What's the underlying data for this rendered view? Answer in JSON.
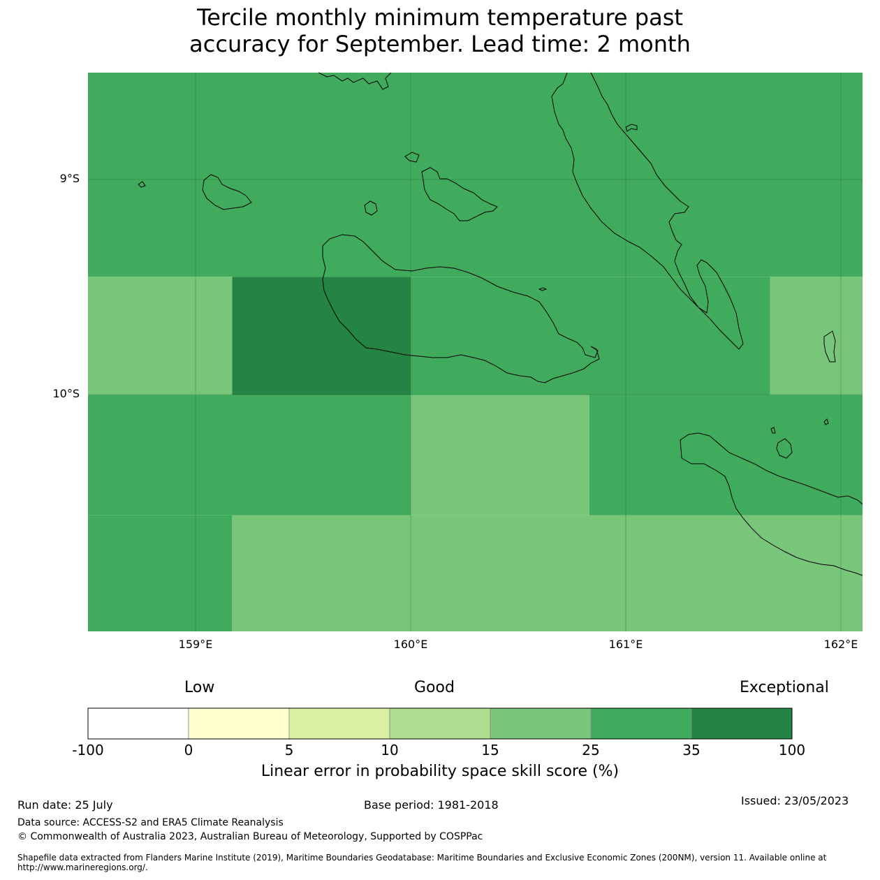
{
  "title_line1": "Tercile monthly minimum temperature past",
  "title_line2": "accuracy for September. Lead time: 2 month",
  "lat_ticks": [
    "9°S",
    "10°S"
  ],
  "lon_ticks": [
    "159°E",
    "160°E",
    "161°E",
    "162°E"
  ],
  "map_extent": {
    "lon_min": 158.5,
    "lon_max": 162.1,
    "lat_top": -8.5,
    "lat_bottom": -11.1
  },
  "cells": [
    {
      "lon0": 158.5,
      "lon1": 162.1,
      "lat0": -8.5,
      "lat1": -9.45,
      "category": "25-35"
    },
    {
      "lon0": 158.5,
      "lon1": 159.17,
      "lat0": -9.45,
      "lat1": -10.0,
      "category": "15-25"
    },
    {
      "lon0": 159.17,
      "lon1": 160.0,
      "lat0": -9.45,
      "lat1": -10.0,
      "category": "35-100"
    },
    {
      "lon0": 160.0,
      "lon1": 161.67,
      "lat0": -9.45,
      "lat1": -10.0,
      "category": "25-35"
    },
    {
      "lon0": 161.67,
      "lon1": 162.1,
      "lat0": -9.45,
      "lat1": -10.0,
      "category": "15-25"
    },
    {
      "lon0": 158.5,
      "lon1": 160.0,
      "lat0": -10.0,
      "lat1": -10.56,
      "category": "25-35"
    },
    {
      "lon0": 160.0,
      "lon1": 160.83,
      "lat0": -10.0,
      "lat1": -10.56,
      "category": "15-25"
    },
    {
      "lon0": 160.83,
      "lon1": 162.1,
      "lat0": -10.0,
      "lat1": -10.56,
      "category": "25-35"
    },
    {
      "lon0": 158.5,
      "lon1": 159.17,
      "lat0": -10.56,
      "lat1": -11.1,
      "category": "25-35"
    },
    {
      "lon0": 159.17,
      "lon1": 162.1,
      "lat0": -10.56,
      "lat1": -11.1,
      "category": "15-25"
    }
  ],
  "colorbar": {
    "headings": [
      "Low",
      "Good",
      "Exceptional"
    ],
    "bounds": [
      "-100",
      "0",
      "5",
      "10",
      "15",
      "25",
      "35",
      "100"
    ],
    "colors": [
      "#ffffff",
      "#ffffcc",
      "#d9f0a3",
      "#addd8e",
      "#78c679",
      "#41ab5d",
      "#238443"
    ],
    "title": "Linear error in probability space skill score (%)"
  },
  "footer": {
    "run_date": "Run date: 25 July",
    "base_period": "Base period: 1981-2018",
    "issued": "Issued: 23/05/2023",
    "data_source": "Data source: ACCESS-S2 and ERA5 Climate Reanalysis",
    "copyright": "© Commonwealth of Australia 2023, Australian Bureau of Meteorology, Supported by COSPPac",
    "shapefile_line1": "Shapefile data extracted from Flanders Marine Institute (2019), Maritime Boundaries Geodatabase: Maritime Boundaries and Exclusive Economic Zones (200NM), version 11. Available online at",
    "shapefile_line2": "http://www.marineregions.org/."
  }
}
